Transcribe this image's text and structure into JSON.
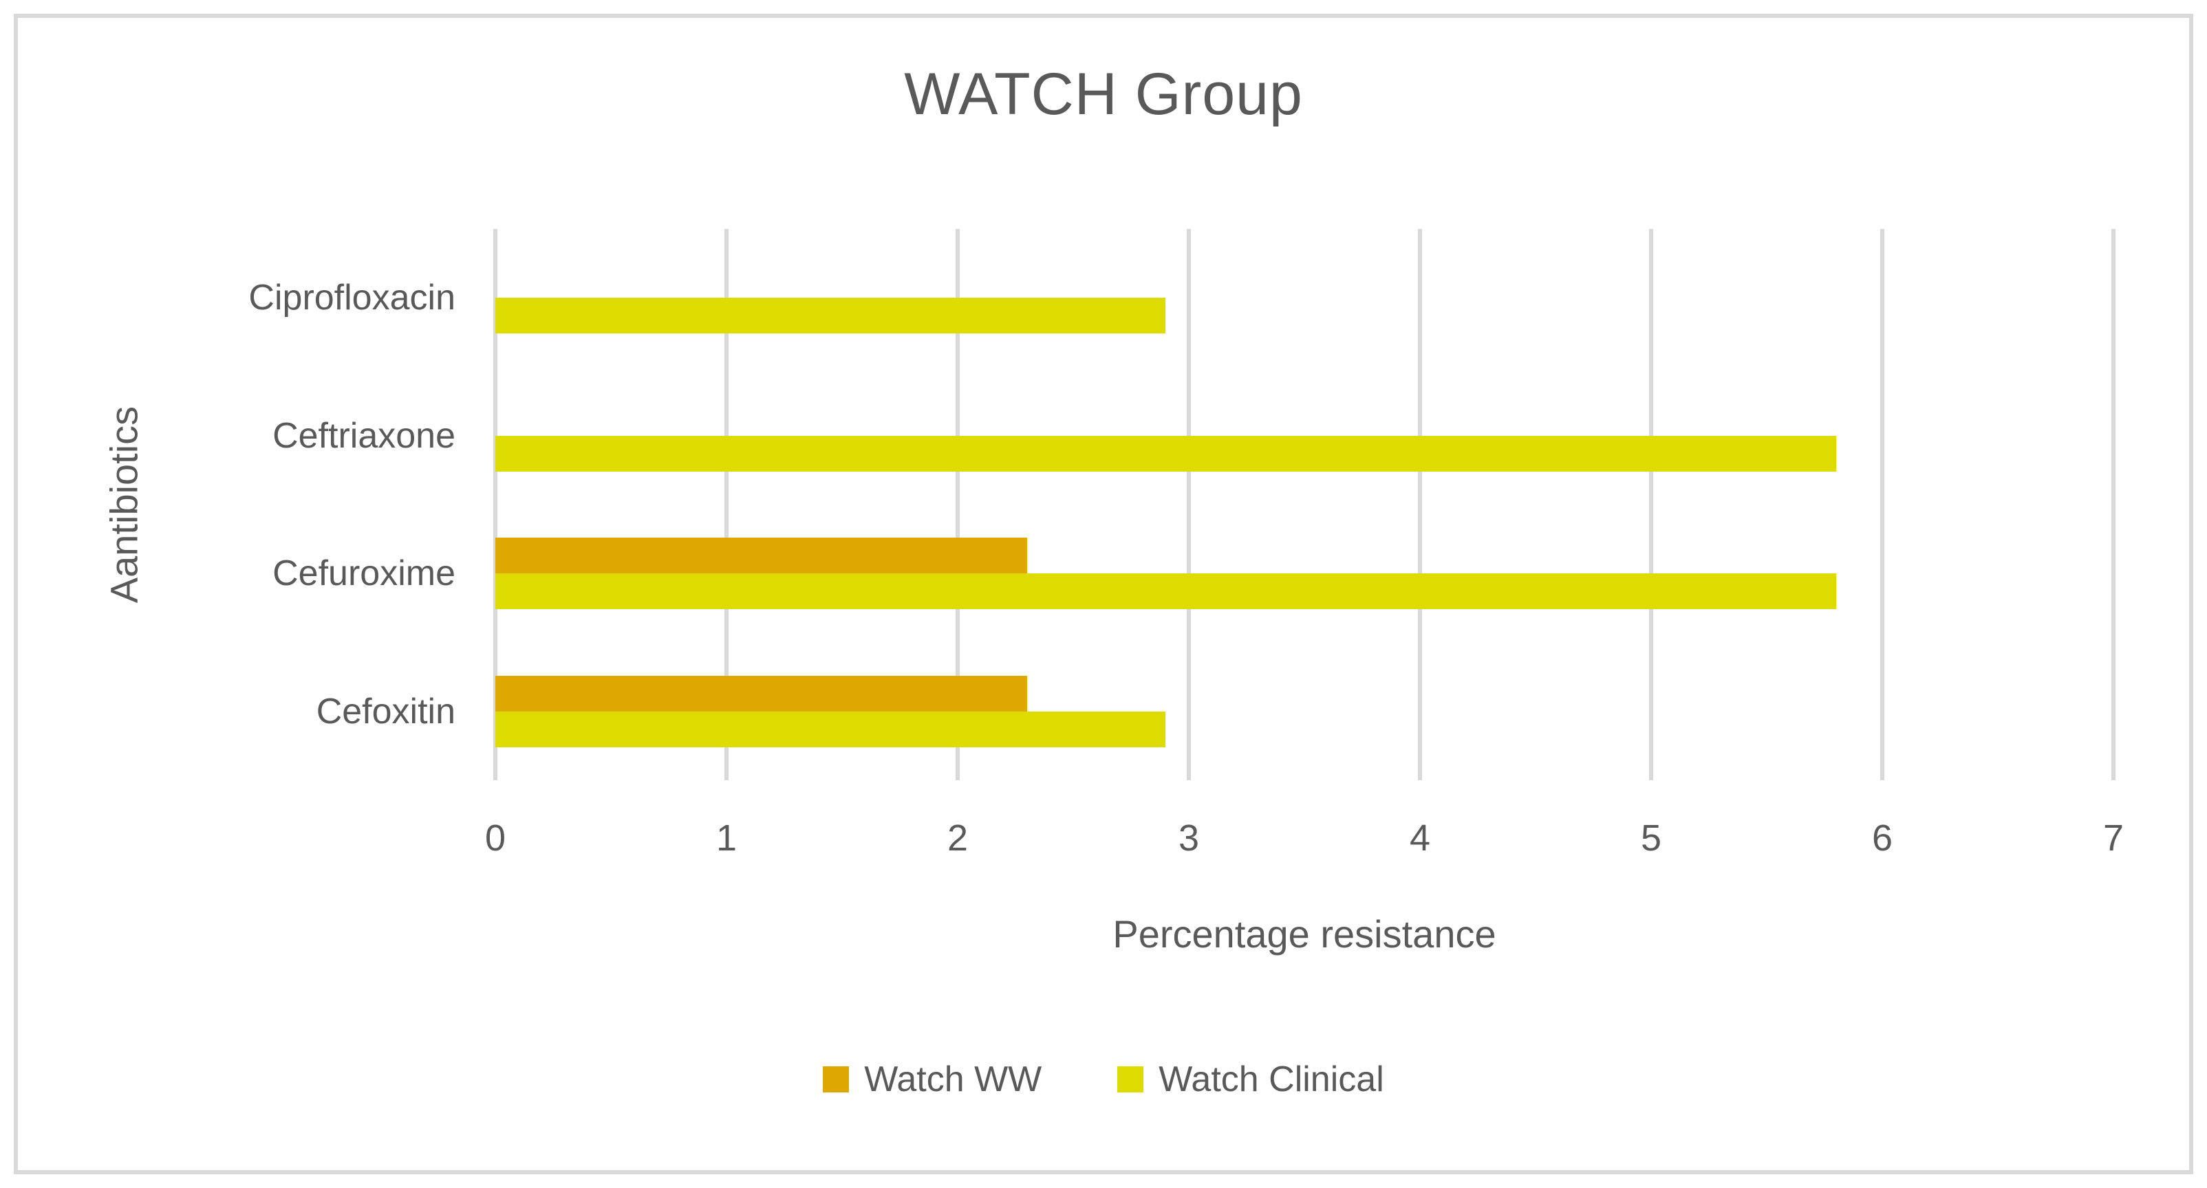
{
  "chart_data": {
    "type": "bar",
    "orientation": "horizontal",
    "title": "WATCH Group",
    "xlabel": "Percentage resistance",
    "ylabel": "Aantibiotics",
    "categories": [
      "Ciprofloxacin",
      "Ceftriaxone",
      "Cefuroxime",
      "Cefoxitin"
    ],
    "series": [
      {
        "name": "Watch WW",
        "color": "#DFA800",
        "values": [
          0,
          0,
          2.3,
          2.3
        ]
      },
      {
        "name": "Watch Clinical",
        "color": "#DEDB00",
        "values": [
          2.9,
          5.8,
          5.8,
          2.9
        ]
      }
    ],
    "xlim": [
      0,
      7
    ],
    "xticks": [
      0,
      1,
      2,
      3,
      4,
      5,
      6,
      7
    ],
    "grid": "vertical-gridlines",
    "legend_position": "bottom",
    "colors": {
      "text": "#595959",
      "gridline": "#D9D9D9",
      "frame_border": "#D9D9D9",
      "background": "#FFFFFF"
    }
  }
}
